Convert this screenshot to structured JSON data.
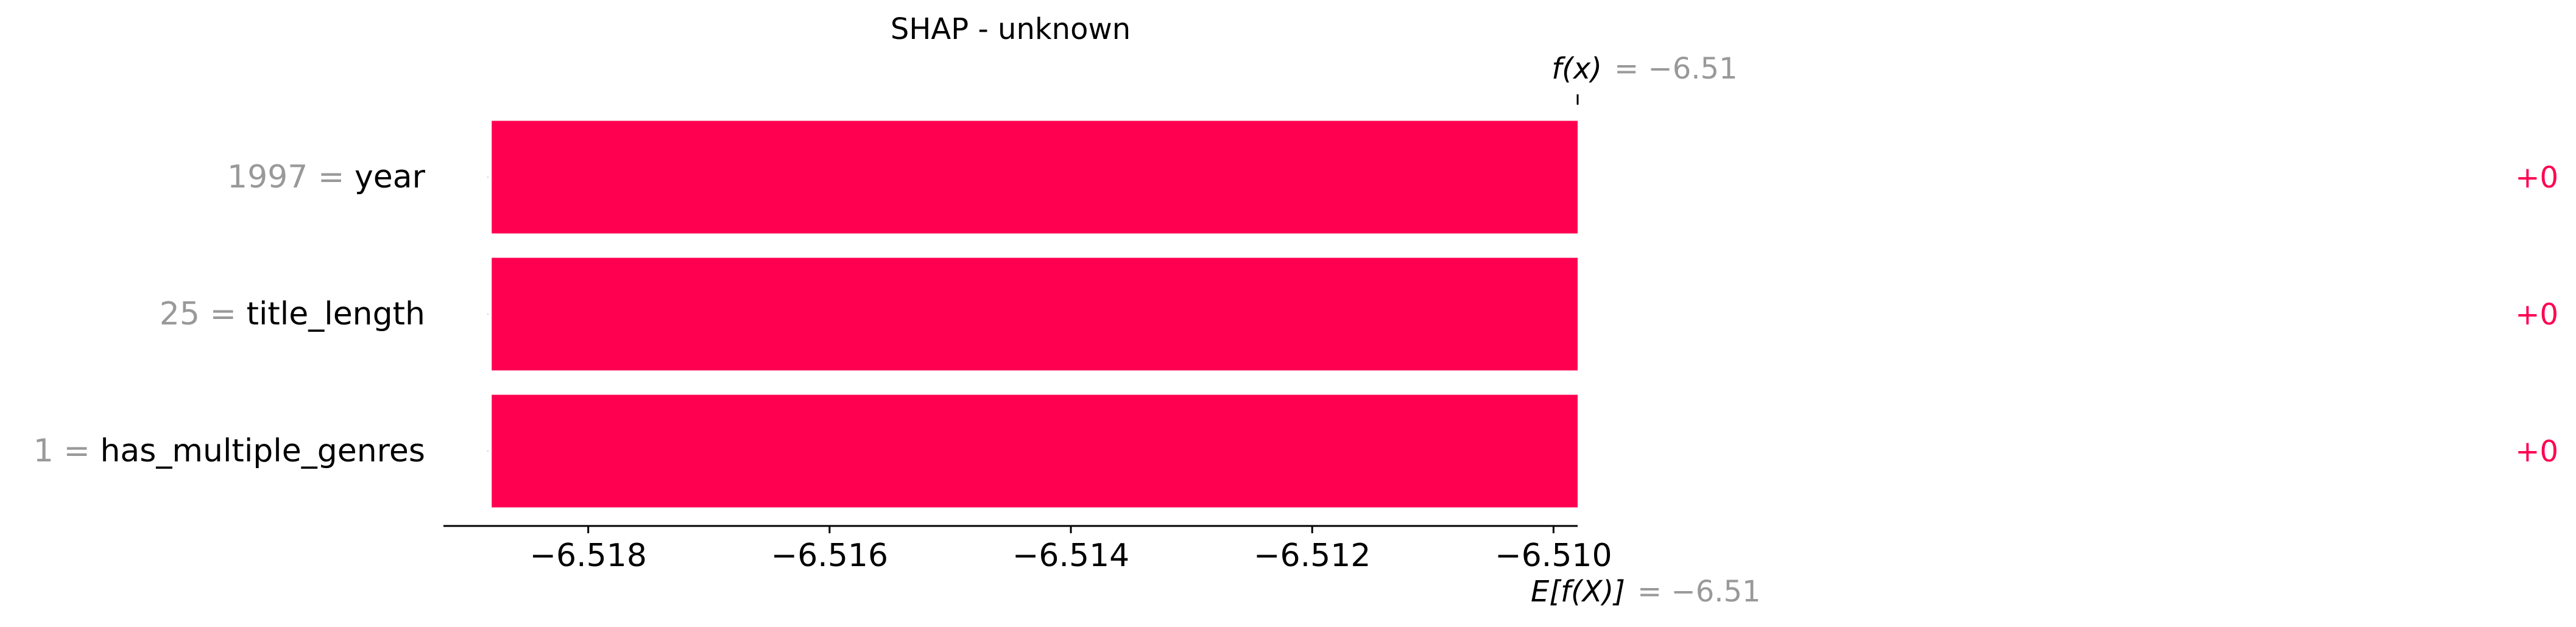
{
  "chart_data": {
    "type": "bar",
    "title": "SHAP - unknown",
    "fx_label": "f(x)",
    "fx_value": "= −6.51",
    "base_label": "E[f(X)]",
    "base_value": "= −6.51",
    "features": [
      {
        "feature": "year",
        "value_text": "1997 =",
        "contribution": "+0",
        "start": -6.5188,
        "end": -6.5098
      },
      {
        "feature": "title_length",
        "value_text": "25 =",
        "contribution": "+0",
        "start": -6.5188,
        "end": -6.5098
      },
      {
        "feature": "has_multiple_genres",
        "value_text": "1 =",
        "contribution": "+0",
        "start": -6.5188,
        "end": -6.5098
      }
    ],
    "xlim": [
      -6.5192,
      -6.5098
    ],
    "xticks": [
      -6.518,
      -6.516,
      -6.514,
      -6.512,
      -6.51
    ],
    "xtick_labels": [
      "−6.518",
      "−6.516",
      "−6.514",
      "−6.512",
      "−6.510"
    ],
    "colors": {
      "positive": "#ff0051",
      "value_text": "#999999",
      "text": "#000000",
      "axis": "#000000"
    }
  }
}
